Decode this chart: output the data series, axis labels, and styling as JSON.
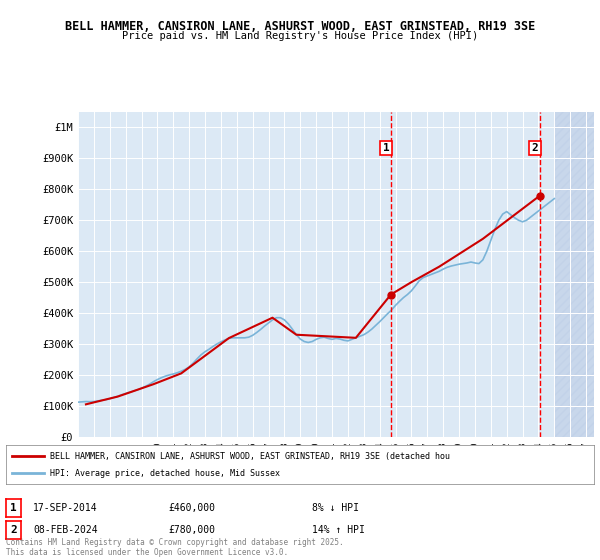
{
  "title_line1": "BELL HAMMER, CANSIRON LANE, ASHURST WOOD, EAST GRINSTEAD, RH19 3SE",
  "title_line2": "Price paid vs. HM Land Registry's House Price Index (HPI)",
  "bg_color": "#dce9f5",
  "plot_bg_color": "#dce9f5",
  "hatch_color": "#c0d0e8",
  "grid_color": "#ffffff",
  "red_line_color": "#cc0000",
  "blue_line_color": "#7ab4d8",
  "ylim": [
    0,
    1050000
  ],
  "yticks": [
    0,
    100000,
    200000,
    300000,
    400000,
    500000,
    600000,
    700000,
    800000,
    900000,
    1000000
  ],
  "ytick_labels": [
    "£0",
    "£100K",
    "£200K",
    "£300K",
    "£400K",
    "£500K",
    "£600K",
    "£700K",
    "£800K",
    "£900K",
    "£1M"
  ],
  "xlim_start": 1995.0,
  "xlim_end": 2027.5,
  "xticks": [
    1995,
    1996,
    1997,
    1998,
    1999,
    2000,
    2001,
    2002,
    2003,
    2004,
    2005,
    2006,
    2007,
    2008,
    2009,
    2010,
    2011,
    2012,
    2013,
    2014,
    2015,
    2016,
    2017,
    2018,
    2019,
    2020,
    2021,
    2022,
    2023,
    2024,
    2025,
    2026,
    2027
  ],
  "marker1_x": 2014.71,
  "marker1_y": 460000,
  "marker1_label": "1",
  "marker1_date": "17-SEP-2014",
  "marker1_price": "£460,000",
  "marker1_hpi": "8% ↓ HPI",
  "marker2_x": 2024.1,
  "marker2_y": 780000,
  "marker2_label": "2",
  "marker2_date": "08-FEB-2024",
  "marker2_price": "£780,000",
  "marker2_hpi": "14% ↑ HPI",
  "legend_line1": "BELL HAMMER, CANSIRON LANE, ASHURST WOOD, EAST GRINSTEAD, RH19 3SE (detached hou",
  "legend_line2": "HPI: Average price, detached house, Mid Sussex",
  "footer_text": "Contains HM Land Registry data © Crown copyright and database right 2025.\nThis data is licensed under the Open Government Licence v3.0.",
  "hpi_years": [
    1995.0,
    1995.25,
    1995.5,
    1995.75,
    1996.0,
    1996.25,
    1996.5,
    1996.75,
    1997.0,
    1997.25,
    1997.5,
    1997.75,
    1998.0,
    1998.25,
    1998.5,
    1998.75,
    1999.0,
    1999.25,
    1999.5,
    1999.75,
    2000.0,
    2000.25,
    2000.5,
    2000.75,
    2001.0,
    2001.25,
    2001.5,
    2001.75,
    2002.0,
    2002.25,
    2002.5,
    2002.75,
    2003.0,
    2003.25,
    2003.5,
    2003.75,
    2004.0,
    2004.25,
    2004.5,
    2004.75,
    2005.0,
    2005.25,
    2005.5,
    2005.75,
    2006.0,
    2006.25,
    2006.5,
    2006.75,
    2007.0,
    2007.25,
    2007.5,
    2007.75,
    2008.0,
    2008.25,
    2008.5,
    2008.75,
    2009.0,
    2009.25,
    2009.5,
    2009.75,
    2010.0,
    2010.25,
    2010.5,
    2010.75,
    2011.0,
    2011.25,
    2011.5,
    2011.75,
    2012.0,
    2012.25,
    2012.5,
    2012.75,
    2013.0,
    2013.25,
    2013.5,
    2013.75,
    2014.0,
    2014.25,
    2014.5,
    2014.75,
    2015.0,
    2015.25,
    2015.5,
    2015.75,
    2016.0,
    2016.25,
    2016.5,
    2016.75,
    2017.0,
    2017.25,
    2017.5,
    2017.75,
    2018.0,
    2018.25,
    2018.5,
    2018.75,
    2019.0,
    2019.25,
    2019.5,
    2019.75,
    2020.0,
    2020.25,
    2020.5,
    2020.75,
    2021.0,
    2021.25,
    2021.5,
    2021.75,
    2022.0,
    2022.25,
    2022.5,
    2022.75,
    2023.0,
    2023.25,
    2023.5,
    2023.75,
    2024.0,
    2024.25,
    2024.5,
    2024.75,
    2025.0
  ],
  "hpi_values": [
    112000,
    113000,
    114000,
    113500,
    114000,
    116000,
    118000,
    120000,
    123000,
    127000,
    131000,
    136000,
    140000,
    144000,
    148000,
    152000,
    157000,
    163000,
    170000,
    178000,
    185000,
    191000,
    196000,
    200000,
    203000,
    207000,
    212000,
    218000,
    226000,
    238000,
    252000,
    265000,
    275000,
    283000,
    292000,
    300000,
    307000,
    313000,
    318000,
    320000,
    320000,
    320000,
    320000,
    322000,
    328000,
    337000,
    347000,
    358000,
    368000,
    378000,
    385000,
    385000,
    378000,
    365000,
    348000,
    330000,
    316000,
    308000,
    305000,
    308000,
    315000,
    320000,
    322000,
    318000,
    315000,
    318000,
    316000,
    312000,
    310000,
    315000,
    320000,
    325000,
    330000,
    338000,
    348000,
    360000,
    372000,
    385000,
    398000,
    410000,
    425000,
    438000,
    450000,
    460000,
    472000,
    488000,
    505000,
    515000,
    520000,
    525000,
    530000,
    535000,
    542000,
    548000,
    552000,
    555000,
    558000,
    560000,
    562000,
    565000,
    562000,
    560000,
    572000,
    600000,
    635000,
    670000,
    700000,
    720000,
    728000,
    718000,
    708000,
    700000,
    695000,
    700000,
    710000,
    720000,
    730000,
    740000,
    750000,
    760000,
    770000
  ],
  "price_years": [
    1995.5,
    1997.5,
    1999.75,
    2001.5,
    2004.5,
    2007.25,
    2008.75,
    2012.5,
    2014.71,
    2016.0,
    2017.75,
    2020.5,
    2024.1
  ],
  "price_values": [
    105000,
    130000,
    170000,
    205000,
    319000,
    385000,
    330000,
    320000,
    460000,
    500000,
    550000,
    640000,
    780000
  ]
}
